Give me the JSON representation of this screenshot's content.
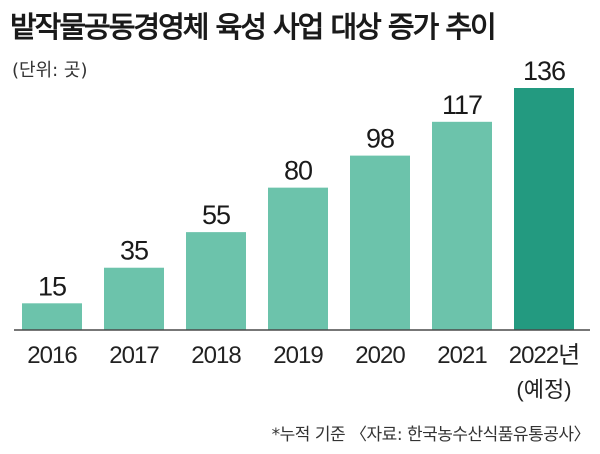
{
  "chart_data": {
    "type": "bar",
    "title": "밭작물공동경영체 육성 사업 대상 증가 추이",
    "unit": "(단위: 곳)",
    "categories": [
      "2016",
      "2017",
      "2018",
      "2019",
      "2020",
      "2021",
      "2022년"
    ],
    "category_notes": [
      "",
      "",
      "",
      "",
      "",
      "",
      "(예정)"
    ],
    "values": [
      15,
      35,
      55,
      80,
      98,
      117,
      136
    ],
    "ylim": [
      0,
      136
    ],
    "grid": false,
    "colors": {
      "bar": "#6cc3ab",
      "highlight_bar": "#239a80",
      "baseline": "#4a4a4a"
    }
  },
  "footnote": "*누적 기준  〈자료: 한국농수산식품유통공사〉"
}
